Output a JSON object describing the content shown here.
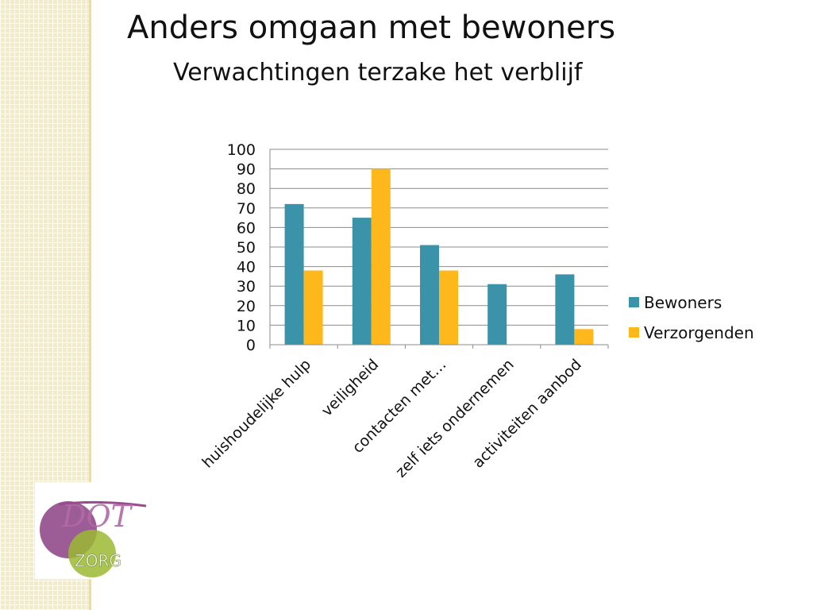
{
  "slide": {
    "title": "Anders omgaan met bewoners",
    "subtitle": "Verwachtingen terzake het verblijf"
  },
  "logo": {
    "text_top": "DOT",
    "text_bottom": "ZORG"
  },
  "chart_data": {
    "type": "bar",
    "categories": [
      "huishoudelijke hulp",
      "veiligheid",
      "contacten met…",
      "zelf iets ondernemen",
      "activiteiten aanbod"
    ],
    "series": [
      {
        "name": "Bewoners",
        "color": "#3a93a8",
        "values": [
          72,
          65,
          51,
          31,
          36
        ]
      },
      {
        "name": "Verzorgenden",
        "color": "#ffb81c",
        "values": [
          38,
          90,
          38,
          0,
          8
        ]
      }
    ],
    "yticks": [
      0,
      10,
      20,
      30,
      40,
      50,
      60,
      70,
      80,
      90,
      100
    ],
    "ylim": [
      0,
      100
    ],
    "grid": true,
    "legend": "right"
  }
}
